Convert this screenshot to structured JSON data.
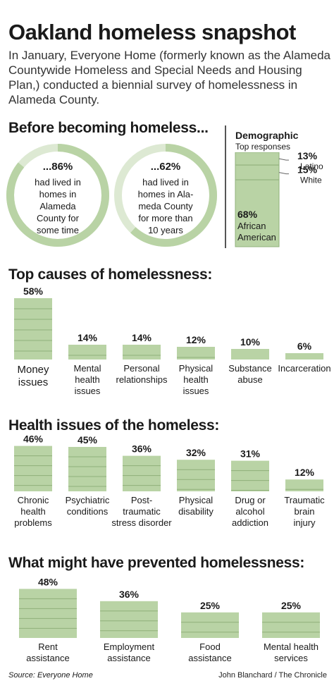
{
  "header": {
    "title": "Oakland homeless snapshot",
    "intro": "In January, Everyone Home (formerly known as the Alameda Countywide Homeless and Special Needs and Housing Plan,) conducted a biennial survey of homelessness in Alameda County."
  },
  "colors": {
    "bar": "#b9d3a5",
    "bar_light": "#dde9d3",
    "line": "#8fb07a",
    "text": "#1a1a1a"
  },
  "chart_data": [
    {
      "id": "before",
      "type": "pie",
      "title": "Before becoming homeless...",
      "items": [
        {
          "value": 86,
          "label_pct": "...86%",
          "label_lines": [
            "had lived in",
            "homes in",
            "Alameda",
            "County for",
            "some time"
          ]
        },
        {
          "value": 62,
          "label_pct": "...62%",
          "label_lines": [
            "had  lived in",
            "homes in Ala-",
            "meda County",
            "for more than",
            "10 years"
          ]
        }
      ]
    },
    {
      "id": "demographic",
      "type": "bar",
      "title": "Demographic",
      "subtitle": "Top responses",
      "categories": [
        "Latino",
        "White",
        "African American"
      ],
      "values": [
        13,
        15,
        68
      ],
      "labels": [
        "13%",
        "15%",
        "68%"
      ],
      "cat_lines": [
        [
          "Latino"
        ],
        [
          "White"
        ],
        [
          "African",
          "American"
        ]
      ]
    },
    {
      "id": "causes",
      "type": "bar",
      "title": "Top causes of homelessness:",
      "categories": [
        "Money issues",
        "Mental health issues",
        "Personal relationships",
        "Physical health issues",
        "Substance abuse",
        "Incarceration"
      ],
      "values": [
        58,
        14,
        14,
        12,
        10,
        6
      ],
      "labels": [
        "58%",
        "14%",
        "14%",
        "12%",
        "10%",
        "6%"
      ],
      "cat_lines": [
        [
          "Money",
          "issues"
        ],
        [
          "Mental",
          "health",
          "issues"
        ],
        [
          "Personal",
          "relationships"
        ],
        [
          "Physical",
          "health",
          "issues"
        ],
        [
          "Substance",
          "abuse"
        ],
        [
          "Incarceration"
        ]
      ]
    },
    {
      "id": "health",
      "type": "bar",
      "title": "Health issues of the homeless:",
      "categories": [
        "Chronic health problems",
        "Psychiatric conditions",
        "Post-traumatic stress disorder",
        "Physical disability",
        "Drug or alcohol addiction",
        "Traumatic brain injury"
      ],
      "values": [
        46,
        45,
        36,
        32,
        31,
        12
      ],
      "labels": [
        "46%",
        "45%",
        "36%",
        "32%",
        "31%",
        "12%"
      ],
      "cat_lines": [
        [
          "Chronic",
          "health",
          "problems"
        ],
        [
          "Psychiatric",
          "conditions"
        ],
        [
          "Post-",
          "traumatic",
          "stress disorder"
        ],
        [
          "Physical",
          "disability"
        ],
        [
          "Drug or",
          "alcohol",
          "addiction"
        ],
        [
          "Traumatic",
          "brain",
          "injury"
        ]
      ]
    },
    {
      "id": "prevent",
      "type": "bar",
      "title": "What might have prevented homelessness:",
      "categories": [
        "Rent assistance",
        "Employment assistance",
        "Food assistance",
        "Mental health services"
      ],
      "values": [
        48,
        36,
        25,
        25
      ],
      "labels": [
        "48%",
        "36%",
        "25%",
        "25%"
      ],
      "cat_lines": [
        [
          "Rent",
          "assistance"
        ],
        [
          "Employment",
          "assistance"
        ],
        [
          "Food",
          "assistance"
        ],
        [
          "Mental health",
          "services"
        ]
      ]
    }
  ],
  "footer": {
    "source": "Source: Everyone Home",
    "credit": "John Blanchard / The Chronicle"
  }
}
